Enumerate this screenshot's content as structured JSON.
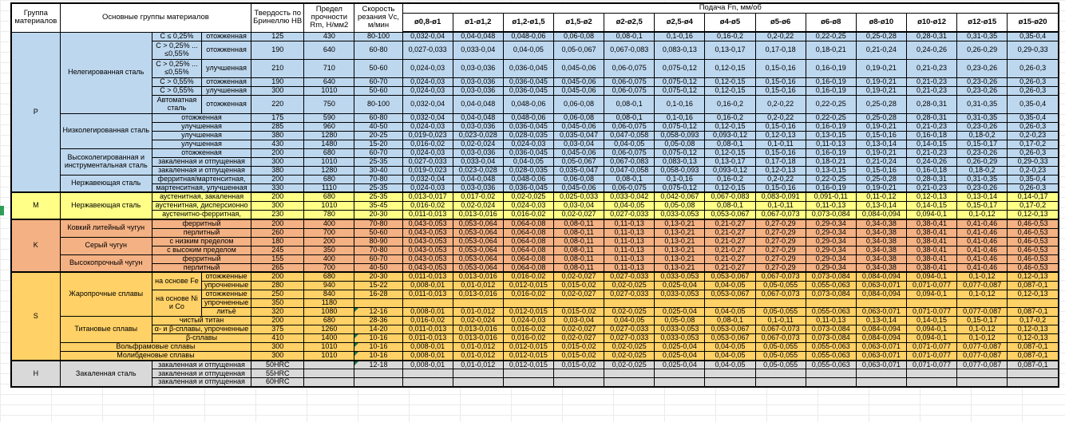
{
  "header": {
    "group": "Группа материалов",
    "main": "Основные группы материалов",
    "hardness": "Твердость по Бринеллю HB",
    "strength": "Предел прочности Rm, Н/мм2",
    "speed": "Скорость резания Vc, м/мин",
    "feed": "Подача Fn, мм/об",
    "feed_cols": [
      "ø0,8-ø1",
      "ø1-ø1,2",
      "ø1,2-ø1,5",
      "ø1,5-ø2",
      "ø2-ø2,5",
      "ø2,5-ø4",
      "ø4-ø5",
      "ø5-ø6",
      "ø6-ø8",
      "ø8-ø10",
      "ø10-ø12",
      "ø12-ø15",
      "ø15-ø20"
    ]
  },
  "colors": {
    "p": "#BDD7EE",
    "m": "#FFFF87",
    "k": "#F4B183",
    "s": "#FFD166",
    "h": "#D9D9D9",
    "flag_triangle": "#1d7044",
    "margin_marker": "#2e9e57",
    "border": "#000000"
  },
  "feed_patterns": {
    "A": [
      "0,032-0,04",
      "0,04-0,048",
      "0,048-0,06",
      "0,06-0,08",
      "0,08-0,1",
      "0,1-0,16",
      "0,16-0,2",
      "0,2-0,22",
      "0,22-0,25",
      "0,25-0,28",
      "0,28-0,31",
      "0,31-0,35",
      "0,35-0,4"
    ],
    "B": [
      "0,027-0,033",
      "0,033-0,04",
      "0,04-0,05",
      "0,05-0,067",
      "0,067-0,083",
      "0,083-0,13",
      "0,13-0,17",
      "0,17-0,18",
      "0,18-0,21",
      "0,21-0,24",
      "0,24-0,26",
      "0,26-0,29",
      "0,29-0,33"
    ],
    "C": [
      "0,024-0,03",
      "0,03-0,036",
      "0,036-0,045",
      "0,045-0,06",
      "0,06-0,075",
      "0,075-0,12",
      "0,12-0,15",
      "0,15-0,16",
      "0,16-0,19",
      "0,19-0,21",
      "0,21-0,23",
      "0,23-0,26",
      "0,26-0,3"
    ],
    "D": [
      "0,019-0,023",
      "0,023-0,028",
      "0,028-0,035",
      "0,035-0,047",
      "0,047-0,058",
      "0,058-0,093",
      "0,093-0,12",
      "0,12-0,13",
      "0,13-0,15",
      "0,15-0,16",
      "0,16-0,18",
      "0,18-0,2",
      "0,2-0,23"
    ],
    "E": [
      "0,016-0,02",
      "0,02-0,024",
      "0,024-0,03",
      "0,03-0,04",
      "0,04-0,05",
      "0,05-0,08",
      "0,08-0,1",
      "0,1-0,11",
      "0,11-0,13",
      "0,13-0,14",
      "0,14-0,15",
      "0,15-0,17",
      "0,17-0,2"
    ],
    "F": [
      "0,013-0,017",
      "0,017-0,02",
      "0,02-0,025",
      "0,025-0,033",
      "0,033-0,042",
      "0,042-0,067",
      "0,067-0,083",
      "0,083-0,091",
      "0,091-0,11",
      "0,11-0,12",
      "0,12-0,13",
      "0,13-0,14",
      "0,14-0,17"
    ],
    "G": [
      "0,011-0,013",
      "0,013-0,016",
      "0,016-0,02",
      "0,02-0,027",
      "0,027-0,033",
      "0,033-0,053",
      "0,053-0,067",
      "0,067-0,073",
      "0,073-0,084",
      "0,084-0,094",
      "0,094-0,1",
      "0,1-0,12",
      "0,12-0,13"
    ],
    "H": [
      "0,043-0,053",
      "0,053-0,064",
      "0,064-0,08",
      "0,08-0,11",
      "0,11-0,13",
      "0,13-0,21",
      "0,21-0,27",
      "0,27-0,29",
      "0,29-0,34",
      "0,34-0,38",
      "0,38-0,41",
      "0,41-0,46",
      "0,46-0,53"
    ],
    "I": [
      "0,008-0,01",
      "0,01-0,012",
      "0,012-0,015",
      "0,015-0,02",
      "0,02-0,025",
      "0,025-0,04",
      "0,04-0,05",
      "0,05-0,055",
      "0,055-0,063",
      "0,063-0,071",
      "0,071-0,077",
      "0,077-0,087",
      "0,087-0,1"
    ],
    "blank": [
      "",
      "",
      "",
      "",
      "",
      "",
      "",
      "",
      "",
      "",
      "",
      "",
      ""
    ]
  },
  "rows": [
    {
      "g": "p",
      "left": [
        {
          "t": "P",
          "rs": 15,
          "n": "cell-iso-group"
        },
        {
          "t": "Нелегированная сталь",
          "rs": 6,
          "n": "cell-material-family"
        },
        {
          "t": "C ≤ 0,25%"
        },
        {
          "t": "отожженная"
        }
      ],
      "hb": "125",
      "rm": "430",
      "vc": "80-100",
      "feed": "A"
    },
    {
      "g": "p",
      "tall": 1,
      "left": [
        {
          "t": "C > 0,25% ... ≤0,55%"
        },
        {
          "t": "отожженная"
        }
      ],
      "hb": "190",
      "rm": "640",
      "vc": "60-80",
      "feed": "B"
    },
    {
      "g": "p",
      "tall": 1,
      "left": [
        {
          "t": "C > 0,25% ... ≤0,55%"
        },
        {
          "t": "улучшенная"
        }
      ],
      "hb": "210",
      "rm": "710",
      "vc": "50-60",
      "feed": "C"
    },
    {
      "g": "p",
      "left": [
        {
          "t": "C > 0,55%"
        },
        {
          "t": "отожженная"
        }
      ],
      "hb": "190",
      "rm": "640",
      "vc": "60-70",
      "feed": "C"
    },
    {
      "g": "p",
      "left": [
        {
          "t": "C > 0,55%"
        },
        {
          "t": "улучшенная"
        }
      ],
      "hb": "300",
      "rm": "1010",
      "vc": "50-60",
      "feed": "C"
    },
    {
      "g": "p",
      "tall": 1,
      "left": [
        {
          "t": "Автоматная сталь"
        },
        {
          "t": "отожженная"
        }
      ],
      "hb": "220",
      "rm": "750",
      "vc": "80-100",
      "feed": "A"
    },
    {
      "g": "p",
      "left": [
        {
          "t": "Низколегированная сталь",
          "rs": 4,
          "n": "cell-material-family"
        },
        {
          "t": "отожженная",
          "cs": 2
        }
      ],
      "hb": "175",
      "rm": "590",
      "vc": "60-80",
      "feed": "A"
    },
    {
      "g": "p",
      "left": [
        {
          "t": "улучшенная",
          "cs": 2
        }
      ],
      "hb": "285",
      "rm": "960",
      "vc": "40-50",
      "feed": "C"
    },
    {
      "g": "p",
      "left": [
        {
          "t": "улучшенная",
          "cs": 2
        }
      ],
      "hb": "380",
      "rm": "1280",
      "vc": "20-25",
      "feed": "D"
    },
    {
      "g": "p",
      "left": [
        {
          "t": "улучшенная",
          "cs": 2
        }
      ],
      "hb": "430",
      "rm": "1480",
      "vc": "15-20",
      "feed": "E"
    },
    {
      "g": "p",
      "left": [
        {
          "t": "Высоколегированная и инструментальная сталь",
          "rs": 3,
          "n": "cell-material-family"
        },
        {
          "t": "отожженная",
          "cs": 2
        }
      ],
      "hb": "200",
      "rm": "680",
      "vc": "60-70",
      "feed": "C"
    },
    {
      "g": "p",
      "left": [
        {
          "t": "закаленная и отпущенная",
          "cs": 2
        }
      ],
      "hb": "300",
      "rm": "1010",
      "vc": "25-35",
      "feed": "B"
    },
    {
      "g": "p",
      "left": [
        {
          "t": "закаленная и отпущенная",
          "cs": 2
        }
      ],
      "hb": "380",
      "rm": "1280",
      "vc": "30-40",
      "feed": "D"
    },
    {
      "g": "p",
      "left": [
        {
          "t": "Нержавеющая сталь",
          "rs": 2,
          "n": "cell-material-family"
        },
        {
          "t": "ферритная/мартенситная,",
          "cs": 2
        }
      ],
      "hb": "200",
      "rm": "680",
      "vc": "70-80",
      "feed": "A"
    },
    {
      "g": "p",
      "left": [
        {
          "t": "мартенситная, улучшенная",
          "cs": 2
        }
      ],
      "hb": "330",
      "rm": "1110",
      "vc": "25-35",
      "feed": "C"
    },
    {
      "g": "m",
      "sep": 1,
      "left": [
        {
          "t": "M",
          "rs": 3,
          "n": "cell-iso-group"
        },
        {
          "t": "Нержавеющая сталь",
          "rs": 3,
          "n": "cell-material-family"
        },
        {
          "t": "аустенитная, закаленная",
          "cs": 2
        }
      ],
      "hb": "200",
      "rm": "680",
      "vc": "25-35",
      "feed": "F"
    },
    {
      "g": "m",
      "left": [
        {
          "t": "аустенитная, дисперсионно",
          "cs": 2
        }
      ],
      "hb": "300",
      "rm": "1010",
      "vc": "35-45",
      "feed": "E"
    },
    {
      "g": "m",
      "left": [
        {
          "t": "аустенитно-ферритная,",
          "cs": 2
        }
      ],
      "hb": "230",
      "rm": "780",
      "vc": "20-30",
      "feed": "G"
    },
    {
      "g": "k",
      "sep": 1,
      "left": [
        {
          "t": "K",
          "rs": 6,
          "n": "cell-iso-group"
        },
        {
          "t": "Ковкий литейный чугун",
          "rs": 2,
          "n": "cell-material-family"
        },
        {
          "t": "ферритный",
          "cs": 2
        }
      ],
      "hb": "200",
      "rm": "400",
      "vc": "70-80",
      "feed": "H"
    },
    {
      "g": "k",
      "left": [
        {
          "t": "перлитный",
          "cs": 2
        }
      ],
      "hb": "260",
      "rm": "700",
      "vc": "50-60",
      "feed": "H"
    },
    {
      "g": "k",
      "left": [
        {
          "t": "Серый чугун",
          "rs": 2,
          "n": "cell-material-family"
        },
        {
          "t": "с низким пределом",
          "cs": 2
        }
      ],
      "hb": "180",
      "rm": "200",
      "vc": "80-90",
      "feed": "H"
    },
    {
      "g": "k",
      "left": [
        {
          "t": "с высоким пределом",
          "cs": 2
        }
      ],
      "hb": "245",
      "rm": "350",
      "vc": "70-80",
      "feed": "H"
    },
    {
      "g": "k",
      "left": [
        {
          "t": "Высокопрочный чугун",
          "rs": 2,
          "n": "cell-material-family"
        },
        {
          "t": "ферритный",
          "cs": 2
        }
      ],
      "hb": "155",
      "rm": "400",
      "vc": "60-70",
      "feed": "H"
    },
    {
      "g": "k",
      "left": [
        {
          "t": "перлитный",
          "cs": 2
        }
      ],
      "hb": "265",
      "rm": "700",
      "vc": "40-50",
      "feed": "H"
    },
    {
      "g": "s",
      "sep": 1,
      "left": [
        {
          "t": "S",
          "rs": 10,
          "n": "cell-iso-group"
        },
        {
          "t": "Жаропрочные сплавы",
          "rs": 5,
          "n": "cell-material-family"
        },
        {
          "t": "на основе Fe",
          "rs": 2
        },
        {
          "t": "отожженные"
        }
      ],
      "hb": "200",
      "rm": "680",
      "vc": "20-30",
      "feed": "G"
    },
    {
      "g": "s",
      "left": [
        {
          "t": "упрочненные"
        }
      ],
      "hb": "280",
      "rm": "940",
      "vc": "15-22",
      "feed": "I"
    },
    {
      "g": "s",
      "left": [
        {
          "t": "на основе Ni и Со",
          "rs": 3
        },
        {
          "t": "отожженные"
        }
      ],
      "hb": "250",
      "rm": "840",
      "vc": "16-28",
      "feed": "G"
    },
    {
      "g": "s",
      "left": [
        {
          "t": "упрочненные"
        }
      ],
      "hb": "350",
      "rm": "1180",
      "vc": "",
      "feed": "blank"
    },
    {
      "g": "s",
      "left": [
        {
          "t": "литьё"
        }
      ],
      "hb": "320",
      "rm": "1080",
      "vc": "12-16",
      "flag": 1,
      "feed": "I"
    },
    {
      "g": "s",
      "left": [
        {
          "t": "Титановые сплавы",
          "rs": 3,
          "n": "cell-material-family"
        },
        {
          "t": "чистый титан",
          "cs": 2
        }
      ],
      "hb": "200",
      "rm": "680",
      "vc": "28-36",
      "feed": "E"
    },
    {
      "g": "s",
      "left": [
        {
          "t": "α- и β-сплавы, упрочненные",
          "cs": 2
        }
      ],
      "hb": "375",
      "rm": "1260",
      "vc": "14-20",
      "feed": "G"
    },
    {
      "g": "s",
      "left": [
        {
          "t": "β-сплавы",
          "cs": 2
        }
      ],
      "hb": "410",
      "rm": "1400",
      "vc": "10-16",
      "flag": 1,
      "feed": "G"
    },
    {
      "g": "s",
      "left": [
        {
          "t": "Вольфрамовые сплавы",
          "cs": 3,
          "n": "cell-material-family"
        }
      ],
      "hb": "300",
      "rm": "1010",
      "vc": "10-16",
      "flag": 1,
      "feed": "I"
    },
    {
      "g": "s",
      "left": [
        {
          "t": "Молибденовые сплавы",
          "cs": 3,
          "n": "cell-material-family"
        }
      ],
      "hb": "300",
      "rm": "1010",
      "vc": "10-16",
      "flag": 1,
      "feed": "I"
    },
    {
      "g": "h",
      "sep": 1,
      "left": [
        {
          "t": "H",
          "rs": 3,
          "n": "cell-iso-group"
        },
        {
          "t": "Закаленная сталь",
          "rs": 3,
          "n": "cell-material-family"
        },
        {
          "t": "закаленная и отпущенная",
          "cs": 2
        }
      ],
      "hb": "50HRC",
      "rm": "",
      "vc": "12-18",
      "flag": 1,
      "feed": "I"
    },
    {
      "g": "h",
      "left": [
        {
          "t": "закаленная и отпущенная",
          "cs": 2
        }
      ],
      "hb": "55HRC",
      "rm": "",
      "vc": "",
      "feed": "blank"
    },
    {
      "g": "h",
      "left": [
        {
          "t": "закаленная и отпущенная",
          "cs": 2
        }
      ],
      "hb": "60HRC",
      "rm": "",
      "vc": "",
      "feed": "blank"
    }
  ]
}
